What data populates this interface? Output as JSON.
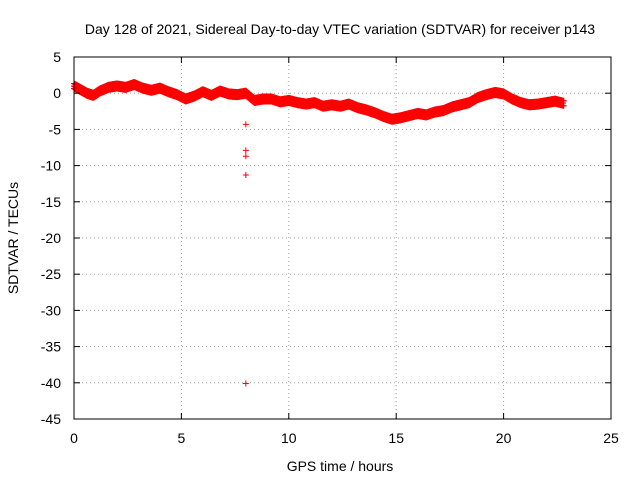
{
  "chart_data": {
    "type": "scatter",
    "title": "Day 128 of 2021, Sidereal Day-to-day VTEC variation (SDTVAR) for receiver p143",
    "xlabel": "GPS time / hours",
    "ylabel": "SDTVAR / TECUs",
    "xlim": [
      0,
      25
    ],
    "ylim": [
      -45,
      5
    ],
    "xticks": [
      0,
      5,
      10,
      15,
      20,
      25
    ],
    "yticks": [
      5,
      0,
      -5,
      -10,
      -15,
      -20,
      -25,
      -30,
      -35,
      -40,
      -45
    ],
    "grid": true,
    "marker": "+",
    "colors": {
      "series": "#ff0000",
      "grid": "#a0a0a0",
      "axis": "#000000"
    },
    "series": [
      {
        "name": "SDTVAR",
        "trend": {
          "x": [
            0.0,
            0.3,
            0.6,
            0.9,
            1.2,
            1.6,
            2.0,
            2.4,
            2.8,
            3.2,
            3.6,
            4.0,
            4.4,
            4.8,
            5.2,
            5.6,
            6.0,
            6.4,
            6.8,
            7.2,
            7.6,
            8.0,
            8.4,
            8.8,
            9.2,
            9.6,
            10.0,
            10.4,
            10.8,
            11.2,
            11.6,
            12.0,
            12.4,
            12.8,
            13.2,
            13.6,
            14.0,
            14.4,
            14.8,
            15.2,
            15.6,
            16.0,
            16.4,
            16.8,
            17.2,
            17.6,
            18.0,
            18.4,
            18.8,
            19.2,
            19.6,
            20.0,
            20.4,
            20.8,
            21.2,
            21.6,
            22.0,
            22.4,
            22.8
          ],
          "y": [
            1.0,
            0.5,
            0.0,
            -0.3,
            0.3,
            0.8,
            1.0,
            0.8,
            1.2,
            0.7,
            0.4,
            0.7,
            0.2,
            -0.2,
            -0.8,
            -0.4,
            0.2,
            -0.3,
            0.3,
            -0.1,
            -0.2,
            0.0,
            -1.0,
            -0.8,
            -0.8,
            -1.2,
            -1.0,
            -1.3,
            -1.5,
            -1.3,
            -1.8,
            -1.6,
            -1.8,
            -1.5,
            -2.0,
            -2.3,
            -2.7,
            -3.2,
            -3.6,
            -3.4,
            -3.1,
            -2.8,
            -3.0,
            -2.6,
            -2.4,
            -1.9,
            -1.6,
            -1.3,
            -0.6,
            -0.2,
            0.1,
            -0.1,
            -0.8,
            -1.3,
            -1.6,
            -1.5,
            -1.3,
            -1.1,
            -1.4
          ]
        },
        "outliers": [
          {
            "x": 8.0,
            "y": -4.3
          },
          {
            "x": 8.0,
            "y": -7.9
          },
          {
            "x": 8.0,
            "y": -8.7
          },
          {
            "x": 8.0,
            "y": -11.3
          },
          {
            "x": 8.0,
            "y": -40.1
          }
        ]
      }
    ]
  }
}
